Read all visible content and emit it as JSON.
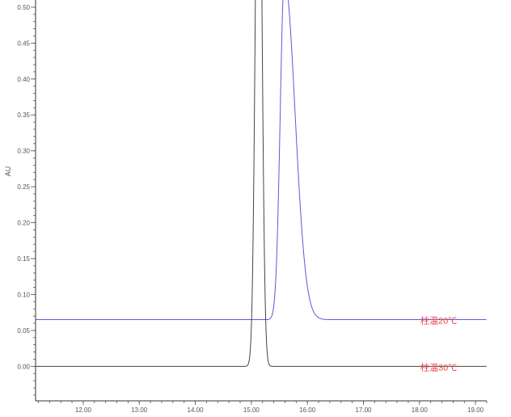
{
  "chart_data": {
    "type": "line",
    "title": "",
    "xlabel": "",
    "ylabel": "AU",
    "xlim": [
      11.15,
      19.2
    ],
    "ylim": [
      -0.048,
      0.51
    ],
    "x_ticks": [
      "12.00",
      "13.00",
      "14.00",
      "15.00",
      "16.00",
      "17.00",
      "18.00",
      "19.00"
    ],
    "y_ticks": [
      "0.00",
      "0.05",
      "0.10",
      "0.15",
      "0.20",
      "0.25",
      "0.30",
      "0.35",
      "0.40",
      "0.45",
      "0.50"
    ],
    "grid": false,
    "series": [
      {
        "name": "柱温20℃",
        "color": "#5b5bd6",
        "label_color": "#e8474b",
        "baseline": 0.065,
        "peak_time": 15.59,
        "peak_height": 0.475,
        "sigma_left": 0.075,
        "sigma_right": 0.19
      },
      {
        "name": "柱温30℃",
        "color": "#444444",
        "label_color": "#e8474b",
        "baseline": 0.0,
        "peak_time": 15.13,
        "peak_height": 0.9,
        "sigma_left": 0.055,
        "sigma_right": 0.055
      }
    ]
  }
}
